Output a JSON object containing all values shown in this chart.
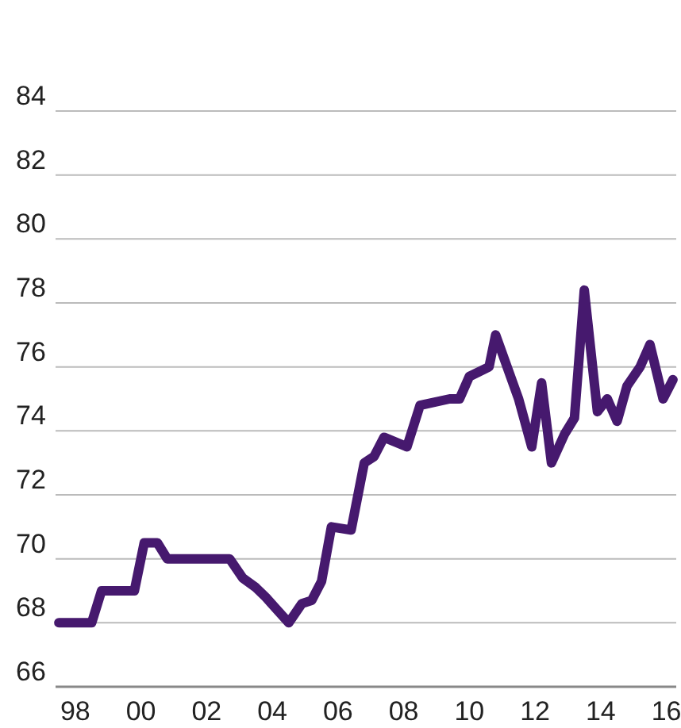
{
  "chart_data": {
    "type": "line",
    "xlim": [
      1997.4,
      2016.3
    ],
    "xticks": [
      {
        "value": 1998,
        "label": "98"
      },
      {
        "value": 2000,
        "label": "00"
      },
      {
        "value": 2002,
        "label": "02"
      },
      {
        "value": 2004,
        "label": "04"
      },
      {
        "value": 2006,
        "label": "06"
      },
      {
        "value": 2008,
        "label": "08"
      },
      {
        "value": 2010,
        "label": "10"
      },
      {
        "value": 2012,
        "label": "12"
      },
      {
        "value": 2014,
        "label": "14"
      },
      {
        "value": 2016,
        "label": "16"
      }
    ],
    "ylim": [
      66,
      84
    ],
    "yticks": [
      66,
      68,
      70,
      72,
      74,
      76,
      78,
      80,
      82,
      84
    ],
    "grid": "y",
    "marker": "none",
    "line_style": "solid",
    "series": [
      {
        "color": "#46196e",
        "x": [
          1997.5,
          1998.5,
          1998.8,
          1999.8,
          2000.1,
          2000.5,
          2000.8,
          2002.7,
          2003.1,
          2003.5,
          2003.8,
          2004.5,
          2004.9,
          2005.2,
          2005.5,
          2005.8,
          2006.4,
          2006.8,
          2007.1,
          2007.4,
          2008.1,
          2008.5,
          2009.4,
          2009.7,
          2010.0,
          2010.6,
          2010.8,
          2011.5,
          2011.9,
          2012.2,
          2012.5,
          2012.9,
          2013.2,
          2013.5,
          2013.9,
          2014.2,
          2014.5,
          2014.8,
          2015.2,
          2015.5,
          2015.9,
          2016.2
        ],
        "values": [
          68,
          68,
          69,
          69,
          70.5,
          70.5,
          70,
          70,
          69.4,
          69.1,
          68.8,
          68,
          68.6,
          68.7,
          69.3,
          71,
          70.9,
          73,
          73.2,
          73.8,
          73.5,
          74.8,
          75,
          75,
          75.7,
          76,
          77,
          75,
          73.5,
          75.5,
          73,
          73.9,
          74.4,
          78.4,
          74.6,
          75,
          74.3,
          75.4,
          76,
          76.7,
          75,
          75.6
        ]
      }
    ]
  }
}
